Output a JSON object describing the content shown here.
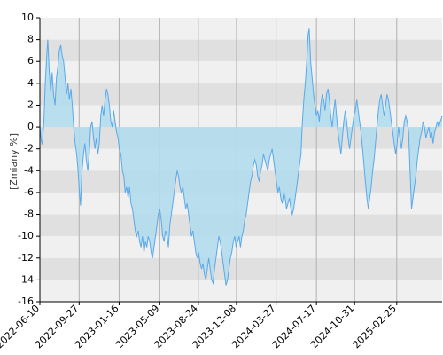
{
  "chart_data": {
    "type": "area",
    "ylabel": "[Zmiany %]",
    "ylim": [
      -16,
      10
    ],
    "yticks": [
      10,
      8,
      6,
      4,
      2,
      0,
      -2,
      -4,
      -6,
      -8,
      -10,
      -12,
      -14,
      -16
    ],
    "xlim": [
      "2022-06-10",
      "2025-07-01"
    ],
    "xticks": [
      "2022-06-10",
      "2022-09-27",
      "2023-01-16",
      "2023-05-09",
      "2023-08-24",
      "2023-12-08",
      "2024-03-27",
      "2024-07-17",
      "2024-10-31",
      "2025-02-25"
    ],
    "grid": true,
    "colors": {
      "line": "#5aa9ea",
      "fill": "#b3dcec",
      "band_dark": "#e0e0e0",
      "band_light": "#f0f0f0",
      "axis": "#000000",
      "vgrid": "#b0b0b0"
    },
    "series": [
      {
        "points": [
          [
            "2022-06-10",
            0.0
          ],
          [
            "2022-06-14",
            -1.3
          ],
          [
            "2022-06-17",
            -1.6
          ],
          [
            "2022-06-21",
            0.5
          ],
          [
            "2022-06-25",
            4.0
          ],
          [
            "2022-06-29",
            6.5
          ],
          [
            "2022-07-02",
            8.0
          ],
          [
            "2022-07-06",
            5.0
          ],
          [
            "2022-07-10",
            3.2
          ],
          [
            "2022-07-14",
            5.0
          ],
          [
            "2022-07-18",
            3.0
          ],
          [
            "2022-07-22",
            2.0
          ],
          [
            "2022-07-26",
            4.5
          ],
          [
            "2022-07-30",
            5.5
          ],
          [
            "2022-08-03",
            7.0
          ],
          [
            "2022-08-07",
            7.5
          ],
          [
            "2022-08-11",
            6.5
          ],
          [
            "2022-08-15",
            6.0
          ],
          [
            "2022-08-19",
            4.5
          ],
          [
            "2022-08-23",
            3.0
          ],
          [
            "2022-08-27",
            4.0
          ],
          [
            "2022-08-31",
            2.5
          ],
          [
            "2022-09-04",
            3.5
          ],
          [
            "2022-09-08",
            2.0
          ],
          [
            "2022-09-12",
            0.0
          ],
          [
            "2022-09-16",
            -1.5
          ],
          [
            "2022-09-20",
            -2.5
          ],
          [
            "2022-09-24",
            -4.0
          ],
          [
            "2022-09-28",
            -6.0
          ],
          [
            "2022-10-01",
            -7.2
          ],
          [
            "2022-10-05",
            -4.0
          ],
          [
            "2022-10-09",
            -2.5
          ],
          [
            "2022-10-13",
            -1.5
          ],
          [
            "2022-10-17",
            -3.0
          ],
          [
            "2022-10-21",
            -4.0
          ],
          [
            "2022-10-25",
            -2.5
          ],
          [
            "2022-10-29",
            0.0
          ],
          [
            "2022-11-02",
            0.5
          ],
          [
            "2022-11-06",
            -1.0
          ],
          [
            "2022-11-10",
            -2.0
          ],
          [
            "2022-11-14",
            -1.0
          ],
          [
            "2022-11-18",
            -2.5
          ],
          [
            "2022-11-22",
            -1.5
          ],
          [
            "2022-11-26",
            1.0
          ],
          [
            "2022-11-30",
            2.0
          ],
          [
            "2022-12-04",
            1.0
          ],
          [
            "2022-12-08",
            2.5
          ],
          [
            "2022-12-12",
            3.5
          ],
          [
            "2022-12-16",
            3.0
          ],
          [
            "2022-12-20",
            2.0
          ],
          [
            "2022-12-24",
            0.5
          ],
          [
            "2022-12-28",
            0.0
          ],
          [
            "2023-01-01",
            1.5
          ],
          [
            "2023-01-05",
            0.5
          ],
          [
            "2023-01-09",
            -0.5
          ],
          [
            "2023-01-13",
            -1.0
          ],
          [
            "2023-01-17",
            -2.0
          ],
          [
            "2023-01-21",
            -2.5
          ],
          [
            "2023-01-25",
            -4.0
          ],
          [
            "2023-01-29",
            -4.5
          ],
          [
            "2023-02-02",
            -6.0
          ],
          [
            "2023-02-06",
            -5.5
          ],
          [
            "2023-02-10",
            -6.5
          ],
          [
            "2023-02-14",
            -5.5
          ],
          [
            "2023-02-18",
            -7.0
          ],
          [
            "2023-02-22",
            -7.5
          ],
          [
            "2023-02-26",
            -8.5
          ],
          [
            "2023-03-02",
            -9.5
          ],
          [
            "2023-03-06",
            -10.0
          ],
          [
            "2023-03-10",
            -9.5
          ],
          [
            "2023-03-14",
            -10.5
          ],
          [
            "2023-03-18",
            -11.0
          ],
          [
            "2023-03-22",
            -10.0
          ],
          [
            "2023-03-26",
            -11.5
          ],
          [
            "2023-03-30",
            -10.5
          ],
          [
            "2023-04-03",
            -11.0
          ],
          [
            "2023-04-07",
            -10.0
          ],
          [
            "2023-04-11",
            -10.5
          ],
          [
            "2023-04-15",
            -11.5
          ],
          [
            "2023-04-19",
            -12.0
          ],
          [
            "2023-04-23",
            -11.0
          ],
          [
            "2023-04-27",
            -10.0
          ],
          [
            "2023-05-01",
            -9.0
          ],
          [
            "2023-05-05",
            -8.0
          ],
          [
            "2023-05-09",
            -7.5
          ],
          [
            "2023-05-13",
            -8.5
          ],
          [
            "2023-05-17",
            -10.0
          ],
          [
            "2023-05-21",
            -10.5
          ],
          [
            "2023-05-25",
            -9.5
          ],
          [
            "2023-05-29",
            -10.0
          ],
          [
            "2023-06-02",
            -11.0
          ],
          [
            "2023-06-06",
            -9.0
          ],
          [
            "2023-06-10",
            -8.0
          ],
          [
            "2023-06-14",
            -7.0
          ],
          [
            "2023-06-18",
            -6.0
          ],
          [
            "2023-06-22",
            -5.0
          ],
          [
            "2023-06-26",
            -4.0
          ],
          [
            "2023-06-30",
            -4.5
          ],
          [
            "2023-07-04",
            -5.5
          ],
          [
            "2023-07-08",
            -6.0
          ],
          [
            "2023-07-12",
            -5.5
          ],
          [
            "2023-07-16",
            -6.5
          ],
          [
            "2023-07-20",
            -7.5
          ],
          [
            "2023-07-24",
            -7.0
          ],
          [
            "2023-07-28",
            -8.0
          ],
          [
            "2023-08-01",
            -9.0
          ],
          [
            "2023-08-05",
            -10.0
          ],
          [
            "2023-08-09",
            -9.5
          ],
          [
            "2023-08-13",
            -10.5
          ],
          [
            "2023-08-17",
            -11.5
          ],
          [
            "2023-08-21",
            -12.0
          ],
          [
            "2023-08-25",
            -11.5
          ],
          [
            "2023-08-29",
            -12.5
          ],
          [
            "2023-09-02",
            -13.0
          ],
          [
            "2023-09-06",
            -12.5
          ],
          [
            "2023-09-10",
            -13.5
          ],
          [
            "2023-09-14",
            -14.0
          ],
          [
            "2023-09-18",
            -13.0
          ],
          [
            "2023-09-22",
            -12.0
          ],
          [
            "2023-09-26",
            -13.0
          ],
          [
            "2023-09-30",
            -14.0
          ],
          [
            "2023-10-04",
            -14.3
          ],
          [
            "2023-10-08",
            -13.0
          ],
          [
            "2023-10-12",
            -12.0
          ],
          [
            "2023-10-16",
            -11.0
          ],
          [
            "2023-10-20",
            -10.0
          ],
          [
            "2023-10-24",
            -10.5
          ],
          [
            "2023-10-28",
            -11.5
          ],
          [
            "2023-11-01",
            -12.5
          ],
          [
            "2023-11-05",
            -13.5
          ],
          [
            "2023-11-09",
            -14.5
          ],
          [
            "2023-11-13",
            -14.0
          ],
          [
            "2023-11-17",
            -13.0
          ],
          [
            "2023-11-21",
            -12.0
          ],
          [
            "2023-11-25",
            -11.5
          ],
          [
            "2023-11-29",
            -10.5
          ],
          [
            "2023-12-03",
            -10.0
          ],
          [
            "2023-12-07",
            -11.0
          ],
          [
            "2023-12-11",
            -10.5
          ],
          [
            "2023-12-15",
            -10.0
          ],
          [
            "2023-12-19",
            -11.0
          ],
          [
            "2023-12-23",
            -10.0
          ],
          [
            "2023-12-27",
            -9.5
          ],
          [
            "2023-12-31",
            -8.5
          ],
          [
            "2024-01-04",
            -8.0
          ],
          [
            "2024-01-08",
            -7.0
          ],
          [
            "2024-01-12",
            -6.0
          ],
          [
            "2024-01-16",
            -5.0
          ],
          [
            "2024-01-20",
            -4.5
          ],
          [
            "2024-01-24",
            -3.5
          ],
          [
            "2024-01-28",
            -3.0
          ],
          [
            "2024-02-01",
            -3.5
          ],
          [
            "2024-02-05",
            -4.5
          ],
          [
            "2024-02-09",
            -5.0
          ],
          [
            "2024-02-13",
            -4.0
          ],
          [
            "2024-02-17",
            -3.5
          ],
          [
            "2024-02-21",
            -2.5
          ],
          [
            "2024-02-25",
            -3.0
          ],
          [
            "2024-02-29",
            -3.5
          ],
          [
            "2024-03-04",
            -4.0
          ],
          [
            "2024-03-08",
            -3.0
          ],
          [
            "2024-03-12",
            -2.5
          ],
          [
            "2024-03-16",
            -2.0
          ],
          [
            "2024-03-20",
            -3.0
          ],
          [
            "2024-03-24",
            -4.0
          ],
          [
            "2024-03-28",
            -5.0
          ],
          [
            "2024-04-01",
            -6.0
          ],
          [
            "2024-04-05",
            -5.5
          ],
          [
            "2024-04-09",
            -6.5
          ],
          [
            "2024-04-13",
            -7.0
          ],
          [
            "2024-04-17",
            -6.0
          ],
          [
            "2024-04-21",
            -6.5
          ],
          [
            "2024-04-25",
            -7.5
          ],
          [
            "2024-04-29",
            -7.0
          ],
          [
            "2024-05-03",
            -6.5
          ],
          [
            "2024-05-07",
            -7.5
          ],
          [
            "2024-05-11",
            -8.0
          ],
          [
            "2024-05-15",
            -7.5
          ],
          [
            "2024-05-19",
            -6.5
          ],
          [
            "2024-05-23",
            -5.5
          ],
          [
            "2024-05-27",
            -4.5
          ],
          [
            "2024-05-31",
            -3.5
          ],
          [
            "2024-06-04",
            -2.5
          ],
          [
            "2024-06-08",
            0.5
          ],
          [
            "2024-06-12",
            2.5
          ],
          [
            "2024-06-16",
            4.0
          ],
          [
            "2024-06-20",
            6.0
          ],
          [
            "2024-06-24",
            8.5
          ],
          [
            "2024-06-27",
            9.0
          ],
          [
            "2024-07-01",
            6.0
          ],
          [
            "2024-07-05",
            4.5
          ],
          [
            "2024-07-09",
            3.0
          ],
          [
            "2024-07-13",
            2.0
          ],
          [
            "2024-07-17",
            1.0
          ],
          [
            "2024-07-21",
            1.5
          ],
          [
            "2024-07-25",
            0.5
          ],
          [
            "2024-07-29",
            2.0
          ],
          [
            "2024-08-02",
            3.0
          ],
          [
            "2024-08-06",
            2.5
          ],
          [
            "2024-08-10",
            1.5
          ],
          [
            "2024-08-14",
            3.0
          ],
          [
            "2024-08-18",
            3.5
          ],
          [
            "2024-08-22",
            2.5
          ],
          [
            "2024-08-26",
            1.0
          ],
          [
            "2024-08-30",
            0.0
          ],
          [
            "2024-09-03",
            1.5
          ],
          [
            "2024-09-07",
            2.5
          ],
          [
            "2024-09-11",
            1.0
          ],
          [
            "2024-09-15",
            -0.5
          ],
          [
            "2024-09-19",
            -1.5
          ],
          [
            "2024-09-23",
            -2.5
          ],
          [
            "2024-09-27",
            -1.0
          ],
          [
            "2024-10-01",
            0.5
          ],
          [
            "2024-10-05",
            1.5
          ],
          [
            "2024-10-09",
            0.5
          ],
          [
            "2024-10-13",
            -1.0
          ],
          [
            "2024-10-17",
            -2.0
          ],
          [
            "2024-10-21",
            -1.0
          ],
          [
            "2024-10-25",
            0.0
          ],
          [
            "2024-10-29",
            1.0
          ],
          [
            "2024-11-02",
            1.5
          ],
          [
            "2024-11-06",
            2.5
          ],
          [
            "2024-11-10",
            1.5
          ],
          [
            "2024-11-14",
            0.5
          ],
          [
            "2024-11-18",
            -0.5
          ],
          [
            "2024-11-22",
            -2.0
          ],
          [
            "2024-11-26",
            -3.5
          ],
          [
            "2024-11-30",
            -5.0
          ],
          [
            "2024-12-04",
            -6.5
          ],
          [
            "2024-12-08",
            -7.5
          ],
          [
            "2024-12-12",
            -6.5
          ],
          [
            "2024-12-16",
            -5.5
          ],
          [
            "2024-12-20",
            -4.0
          ],
          [
            "2024-12-24",
            -3.0
          ],
          [
            "2024-12-28",
            -1.5
          ],
          [
            "2025-01-01",
            0.0
          ],
          [
            "2025-01-05",
            1.5
          ],
          [
            "2025-01-09",
            2.5
          ],
          [
            "2025-01-13",
            3.0
          ],
          [
            "2025-01-17",
            2.0
          ],
          [
            "2025-01-21",
            1.0
          ],
          [
            "2025-01-25",
            2.0
          ],
          [
            "2025-01-29",
            3.0
          ],
          [
            "2025-02-02",
            2.5
          ],
          [
            "2025-02-06",
            1.5
          ],
          [
            "2025-02-10",
            0.5
          ],
          [
            "2025-02-14",
            -0.5
          ],
          [
            "2025-02-18",
            -1.5
          ],
          [
            "2025-02-22",
            -2.5
          ],
          [
            "2025-02-26",
            -1.5
          ],
          [
            "2025-03-02",
            0.0
          ],
          [
            "2025-03-06",
            -1.0
          ],
          [
            "2025-03-10",
            -2.0
          ],
          [
            "2025-03-14",
            -1.0
          ],
          [
            "2025-03-18",
            0.5
          ],
          [
            "2025-03-22",
            1.0
          ],
          [
            "2025-03-26",
            0.5
          ],
          [
            "2025-03-30",
            -0.5
          ],
          [
            "2025-04-03",
            -4.0
          ],
          [
            "2025-04-07",
            -7.5
          ],
          [
            "2025-04-11",
            -6.5
          ],
          [
            "2025-04-15",
            -5.5
          ],
          [
            "2025-04-19",
            -4.5
          ],
          [
            "2025-04-23",
            -3.0
          ],
          [
            "2025-04-27",
            -2.0
          ],
          [
            "2025-05-01",
            -1.0
          ],
          [
            "2025-05-05",
            -0.5
          ],
          [
            "2025-05-09",
            0.5
          ],
          [
            "2025-05-13",
            0.0
          ],
          [
            "2025-05-17",
            -1.0
          ],
          [
            "2025-05-21",
            -0.5
          ],
          [
            "2025-05-25",
            0.0
          ],
          [
            "2025-05-29",
            -1.0
          ],
          [
            "2025-06-02",
            -0.5
          ],
          [
            "2025-06-06",
            -1.5
          ],
          [
            "2025-06-10",
            -0.5
          ],
          [
            "2025-06-14",
            0.0
          ],
          [
            "2025-06-18",
            0.5
          ],
          [
            "2025-06-22",
            0.0
          ],
          [
            "2025-06-26",
            0.5
          ],
          [
            "2025-07-01",
            1.0
          ]
        ]
      }
    ]
  }
}
